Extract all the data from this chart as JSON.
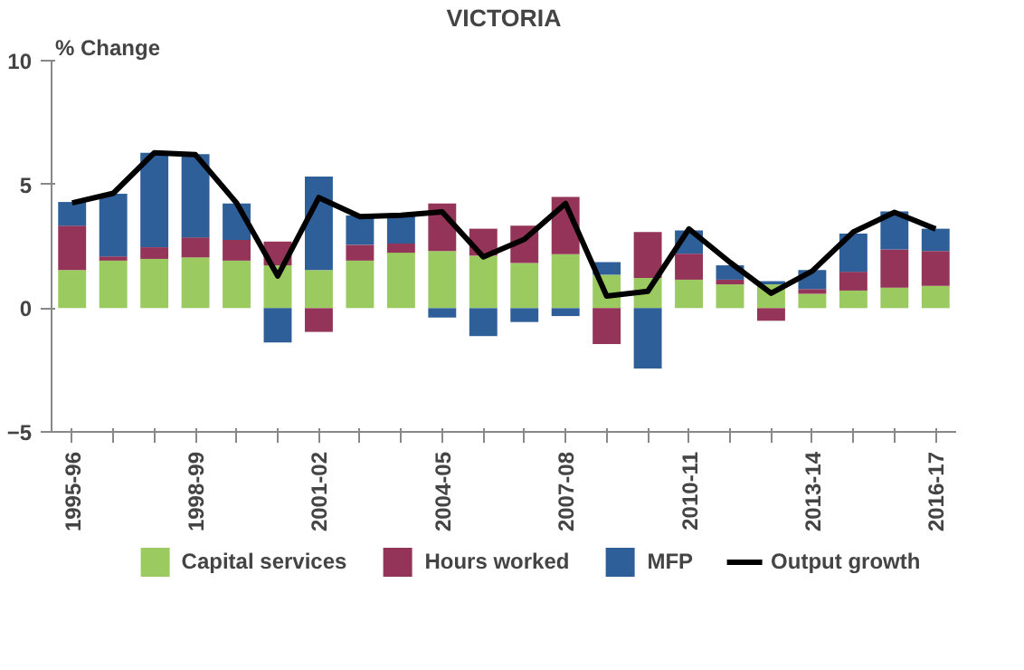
{
  "chart_data": {
    "type": "bar",
    "title": "VICTORIA",
    "ylabel": "% Change",
    "stacked": true,
    "categories": [
      "1995-96",
      null,
      null,
      "1998-99",
      null,
      null,
      "2001-02",
      null,
      null,
      "2004-05",
      null,
      null,
      "2007-08",
      null,
      null,
      "2010-11",
      null,
      null,
      "2013-14",
      null,
      null,
      "2016-17"
    ],
    "series": [
      {
        "name": "Capital services",
        "color": "#9bcb60",
        "values": [
          1.54,
          1.92,
          1.99,
          2.05,
          1.92,
          1.73,
          1.54,
          1.92,
          2.24,
          2.31,
          2.12,
          1.82,
          2.18,
          1.35,
          1.22,
          1.15,
          0.96,
          0.96,
          0.58,
          0.71,
          0.83,
          0.9
        ]
      },
      {
        "name": "Hours worked",
        "color": "#943458",
        "values": [
          1.79,
          0.17,
          0.47,
          0.81,
          0.84,
          0.96,
          -0.96,
          0.64,
          0.37,
          1.92,
          1.09,
          1.51,
          2.31,
          -1.45,
          1.86,
          1.05,
          0.19,
          -0.51,
          0.19,
          0.76,
          1.54,
          1.41
        ]
      },
      {
        "name": "MFP",
        "color": "#2e5f99",
        "values": [
          0.96,
          2.53,
          3.82,
          3.36,
          1.47,
          -1.39,
          3.78,
          1.18,
          1.19,
          -0.38,
          -1.13,
          -0.56,
          -0.32,
          0.51,
          -2.44,
          0.94,
          0.58,
          0.13,
          0.77,
          1.54,
          1.54,
          0.9
        ]
      },
      {
        "name": "Output growth",
        "type": "line",
        "color": "#000000",
        "values": [
          4.25,
          4.64,
          6.28,
          6.2,
          4.25,
          1.3,
          4.47,
          3.7,
          3.75,
          3.89,
          2.07,
          2.78,
          4.23,
          0.49,
          0.68,
          3.2,
          1.85,
          0.6,
          1.5,
          3.08,
          3.87,
          3.2
        ]
      }
    ],
    "ylim": [
      -5,
      10
    ],
    "yticks": [
      -5,
      0,
      5,
      10
    ],
    "grid": false,
    "legend": "bottom"
  }
}
